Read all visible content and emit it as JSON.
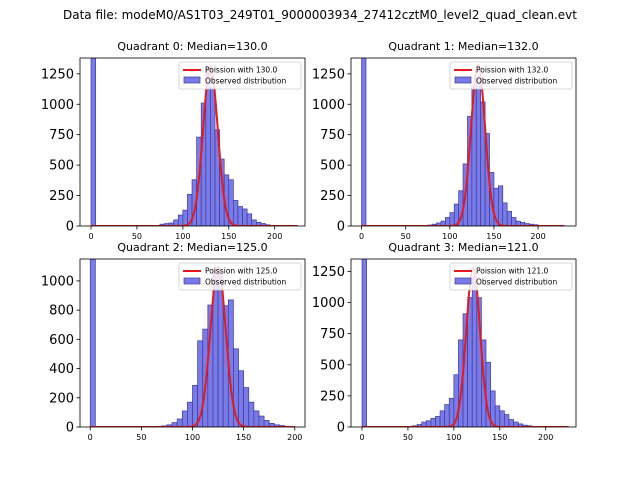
{
  "figure": {
    "suptitle": "Data file: modeM0/AS1T03_249T01_9000003934_27412cztM0_level2_quad_clean.evt"
  },
  "colors": {
    "hist_fill": "#7b7be8",
    "hist_edge": "#3a3aa0",
    "fit_line": "#e41a1c",
    "axes": "#000000"
  },
  "chart_data": [
    {
      "type": "bar",
      "title": "Quadrant 0: Median=130.0",
      "xlim": [
        -12,
        233
      ],
      "ylim": [
        0,
        1380
      ],
      "xticks": [
        0,
        50,
        100,
        150,
        200
      ],
      "yticks": [
        0,
        250,
        500,
        750,
        1000,
        1250
      ],
      "bin_width": 5,
      "bins_start": [
        0,
        75,
        80,
        85,
        90,
        95,
        100,
        105,
        110,
        115,
        120,
        125,
        130,
        135,
        140,
        145,
        150,
        155,
        160,
        165,
        170,
        175,
        180,
        185,
        190,
        195,
        200
      ],
      "counts": [
        1380,
        15,
        20,
        25,
        50,
        90,
        130,
        260,
        380,
        730,
        1010,
        1300,
        1140,
        790,
        550,
        420,
        380,
        210,
        160,
        140,
        100,
        50,
        30,
        20,
        10,
        5,
        0
      ],
      "fit": {
        "mean": 130.0,
        "sigma": 8.0,
        "peak": 1310,
        "x_range": [
          0,
          225
        ]
      },
      "legend": {
        "fit_label": "Poission with 130.0",
        "hist_label": "Observed distribution",
        "position": "upper right"
      }
    },
    {
      "type": "bar",
      "title": "Quadrant 1: Median=132.0",
      "xlim": [
        -12,
        243
      ],
      "ylim": [
        0,
        1380
      ],
      "xticks": [
        0,
        50,
        100,
        150,
        200
      ],
      "yticks": [
        0,
        250,
        500,
        750,
        1000,
        1250
      ],
      "bin_width": 5,
      "bins_start": [
        0,
        75,
        80,
        85,
        90,
        95,
        100,
        105,
        110,
        115,
        120,
        125,
        130,
        135,
        140,
        145,
        150,
        155,
        160,
        165,
        170,
        175,
        180,
        185,
        190,
        195,
        200,
        205,
        210
      ],
      "counts": [
        1380,
        8,
        15,
        25,
        40,
        70,
        110,
        180,
        290,
        510,
        900,
        1150,
        1230,
        1020,
        760,
        440,
        310,
        330,
        190,
        120,
        70,
        40,
        30,
        20,
        15,
        10,
        5,
        3,
        2
      ],
      "fit": {
        "mean": 132.0,
        "sigma": 8.0,
        "peak": 1325,
        "x_range": [
          0,
          230
        ]
      },
      "legend": {
        "fit_label": "Poission with 132.0",
        "hist_label": "Observed distribution",
        "position": "upper right"
      }
    },
    {
      "type": "bar",
      "title": "Quadrant 2: Median=125.0",
      "xlim": [
        -10,
        210
      ],
      "ylim": [
        0,
        1150
      ],
      "xticks": [
        0,
        50,
        100,
        150,
        200
      ],
      "yticks": [
        0,
        200,
        400,
        600,
        800,
        1000
      ],
      "bin_width": 5,
      "bins_start": [
        0,
        65,
        70,
        75,
        80,
        85,
        90,
        95,
        100,
        105,
        110,
        115,
        120,
        125,
        130,
        135,
        140,
        145,
        150,
        155,
        160,
        165,
        170,
        175,
        180,
        185,
        190,
        195
      ],
      "counts": [
        1150,
        5,
        8,
        15,
        30,
        55,
        110,
        170,
        285,
        590,
        670,
        835,
        1080,
        1050,
        830,
        870,
        535,
        385,
        270,
        170,
        110,
        75,
        45,
        25,
        15,
        10,
        5,
        2
      ],
      "fit": {
        "mean": 125.0,
        "sigma": 7.5,
        "peak": 1095,
        "x_range": [
          0,
          200
        ]
      },
      "legend": {
        "fit_label": "Poission with 125.0",
        "hist_label": "Observed distribution",
        "position": "upper right"
      }
    },
    {
      "type": "bar",
      "title": "Quadrant 3: Median=121.0",
      "xlim": [
        -12,
        233
      ],
      "ylim": [
        0,
        1350
      ],
      "xticks": [
        0,
        50,
        100,
        150,
        200
      ],
      "yticks": [
        0,
        250,
        500,
        750,
        1000,
        1250
      ],
      "bin_width": 5,
      "bins_start": [
        0,
        55,
        60,
        65,
        70,
        75,
        80,
        85,
        90,
        95,
        100,
        105,
        110,
        115,
        120,
        125,
        130,
        135,
        140,
        145,
        150,
        155,
        160,
        165,
        170,
        175,
        180,
        185
      ],
      "counts": [
        1350,
        10,
        20,
        40,
        50,
        70,
        85,
        130,
        180,
        230,
        420,
        700,
        910,
        1040,
        1200,
        1040,
        700,
        520,
        290,
        170,
        130,
        100,
        60,
        40,
        25,
        15,
        10,
        5
      ],
      "fit": {
        "mean": 121.0,
        "sigma": 7.5,
        "peak": 1280,
        "x_range": [
          0,
          225
        ]
      },
      "legend": {
        "fit_label": "Poission with 121.0",
        "hist_label": "Observed distribution",
        "position": "upper right"
      }
    }
  ]
}
